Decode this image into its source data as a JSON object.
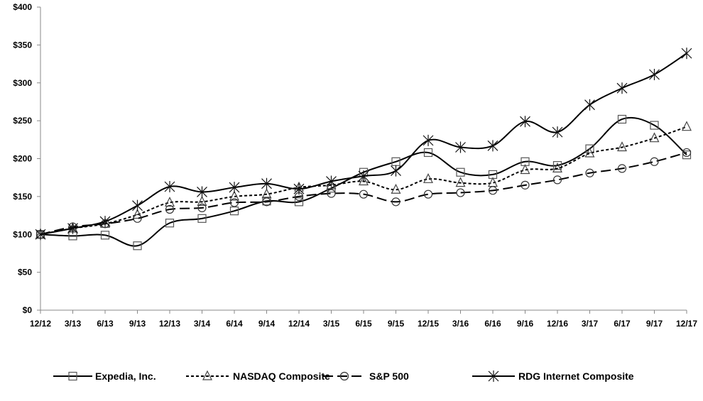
{
  "chart_data": {
    "type": "line",
    "title": "",
    "xlabel": "",
    "ylabel": "",
    "ylim": [
      0,
      400
    ],
    "y_ticks": [
      "$0",
      "$50",
      "$100",
      "$150",
      "$200",
      "$250",
      "$300",
      "$350",
      "$400"
    ],
    "y_tick_values": [
      0,
      50,
      100,
      150,
      200,
      250,
      300,
      350,
      400
    ],
    "grid": false,
    "legend_position": "bottom",
    "categories": [
      "12/12",
      "3/13",
      "6/13",
      "9/13",
      "12/13",
      "3/14",
      "6/14",
      "9/14",
      "12/14",
      "3/15",
      "6/15",
      "9/15",
      "12/15",
      "3/16",
      "6/16",
      "9/16",
      "12/16",
      "3/17",
      "6/17",
      "9/17",
      "12/17"
    ],
    "series": [
      {
        "name": "Expedia, Inc.",
        "marker": "square",
        "line": "solid",
        "color": "#000000",
        "values": [
          100,
          98,
          99,
          85,
          115,
          121,
          131,
          144,
          143,
          161,
          182,
          196,
          208,
          182,
          179,
          196,
          191,
          213,
          252,
          244,
          205
        ]
      },
      {
        "name": "NASDAQ Composite",
        "marker": "triangle",
        "line": "short-dash",
        "color": "#000000",
        "values": [
          100,
          108,
          114,
          126,
          142,
          143,
          150,
          153,
          162,
          165,
          170,
          159,
          173,
          168,
          168,
          185,
          187,
          207,
          215,
          227,
          242
        ]
      },
      {
        "name": "S&P 500",
        "marker": "circle",
        "line": "long-dash",
        "color": "#000000",
        "values": [
          100,
          110,
          114,
          121,
          133,
          135,
          142,
          143,
          150,
          154,
          153,
          143,
          153,
          155,
          158,
          165,
          172,
          181,
          187,
          196,
          208
        ]
      },
      {
        "name": "RDG Internet Composite",
        "marker": "asterisk",
        "line": "solid",
        "color": "#000000",
        "values": [
          100,
          108,
          117,
          138,
          163,
          156,
          162,
          167,
          160,
          170,
          177,
          184,
          224,
          215,
          217,
          249,
          235,
          271,
          293,
          311,
          339
        ]
      }
    ]
  }
}
